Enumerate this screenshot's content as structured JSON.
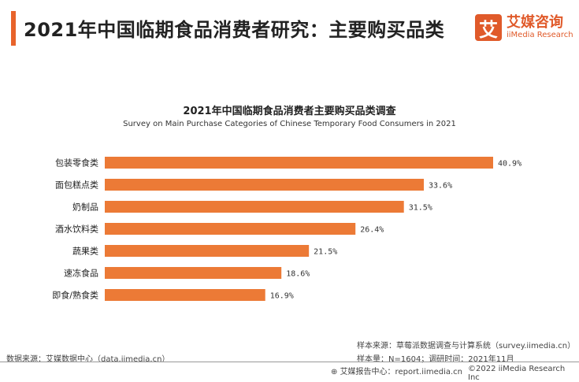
{
  "header": {
    "title": "2021年中国临期食品消费者研究：主要购买品类",
    "logo_mark": "艾",
    "logo_cn": "艾媒咨询",
    "logo_en": "iiMedia Research"
  },
  "chart_data": {
    "type": "bar",
    "orientation": "horizontal",
    "title": "2021年中国临期食品消费者主要购买品类调查",
    "subtitle": "Survey on Main Purchase Categories of Chinese Temporary Food Consumers in 2021",
    "categories": [
      "包装零食类",
      "面包糕点类",
      "奶制品",
      "酒水饮料类",
      "蔬果类",
      "速冻食品",
      "即食/熟食类"
    ],
    "values": [
      40.9,
      33.6,
      31.5,
      26.4,
      21.5,
      18.6,
      16.9
    ],
    "labels": [
      "40.9%",
      "33.6%",
      "31.5%",
      "26.4%",
      "21.5%",
      "18.6%",
      "16.9%"
    ],
    "unit": "%",
    "xlim": [
      0,
      42
    ],
    "bar_color": "#ec7a36",
    "grid": false
  },
  "footer": {
    "data_source": "数据来源：艾媒数据中心（data.iimedia.cn）",
    "sample_source": "样本来源：草莓派数据调查与计算系统（survey.iimedia.cn）",
    "sample_size": "样本量：N=1604；调研时间：2021年11月",
    "report": "艾媒报告中心：report.iimedia.cn",
    "copyright": "©2022  iiMedia Research  Inc"
  }
}
